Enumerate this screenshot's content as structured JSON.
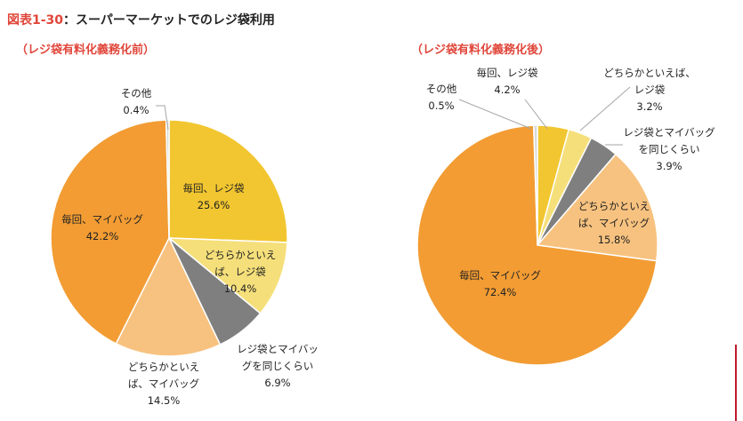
{
  "figure": {
    "label": "図表1-30",
    "separator": "：",
    "title": "スーパーマーケットでのレジ袋利用"
  },
  "chart_data": [
    {
      "type": "pie",
      "title": "（レジ袋有料化義務化前）",
      "slices": [
        {
          "label_lines": [
            "毎回、レジ袋"
          ],
          "value": 25.6,
          "value_text": "25.6%",
          "color": "#f2c630"
        },
        {
          "label_lines": [
            "どちらかといえ",
            "ば、レジ袋"
          ],
          "value": 10.4,
          "value_text": "10.4%",
          "color": "#f5df7a"
        },
        {
          "label_lines": [
            "レジ袋とマイバッ",
            "グを同じくらい"
          ],
          "value": 6.9,
          "value_text": "6.9%",
          "color": "#7f7f7f"
        },
        {
          "label_lines": [
            "どちらかといえ",
            "ば、マイバッグ"
          ],
          "value": 14.5,
          "value_text": "14.5%",
          "color": "#f7c27f"
        },
        {
          "label_lines": [
            "毎回、マイバッグ"
          ],
          "value": 42.2,
          "value_text": "42.2%",
          "color": "#f29c33"
        },
        {
          "label_lines": [
            "その他"
          ],
          "value": 0.4,
          "value_text": "0.4%",
          "color": "#d9d9d9"
        }
      ]
    },
    {
      "type": "pie",
      "title": "（レジ袋有料化義務化後）",
      "slices": [
        {
          "label_lines": [
            "毎回、レジ袋"
          ],
          "value": 4.2,
          "value_text": "4.2%",
          "color": "#f2c630"
        },
        {
          "label_lines": [
            "どちらかといえば、",
            "レジ袋"
          ],
          "value": 3.2,
          "value_text": "3.2%",
          "color": "#f5df7a"
        },
        {
          "label_lines": [
            "レジ袋とマイバッグ",
            "を同じくらい"
          ],
          "value": 3.9,
          "value_text": "3.9%",
          "color": "#7f7f7f"
        },
        {
          "label_lines": [
            "どちらかといえ",
            "ば、マイバッグ"
          ],
          "value": 15.8,
          "value_text": "15.8%",
          "color": "#f7c27f"
        },
        {
          "label_lines": [
            "毎回、マイバッグ"
          ],
          "value": 72.4,
          "value_text": "72.4%",
          "color": "#f29c33"
        },
        {
          "label_lines": [
            "その他"
          ],
          "value": 0.5,
          "value_text": "0.5%",
          "color": "#d9d9d9"
        }
      ]
    }
  ]
}
